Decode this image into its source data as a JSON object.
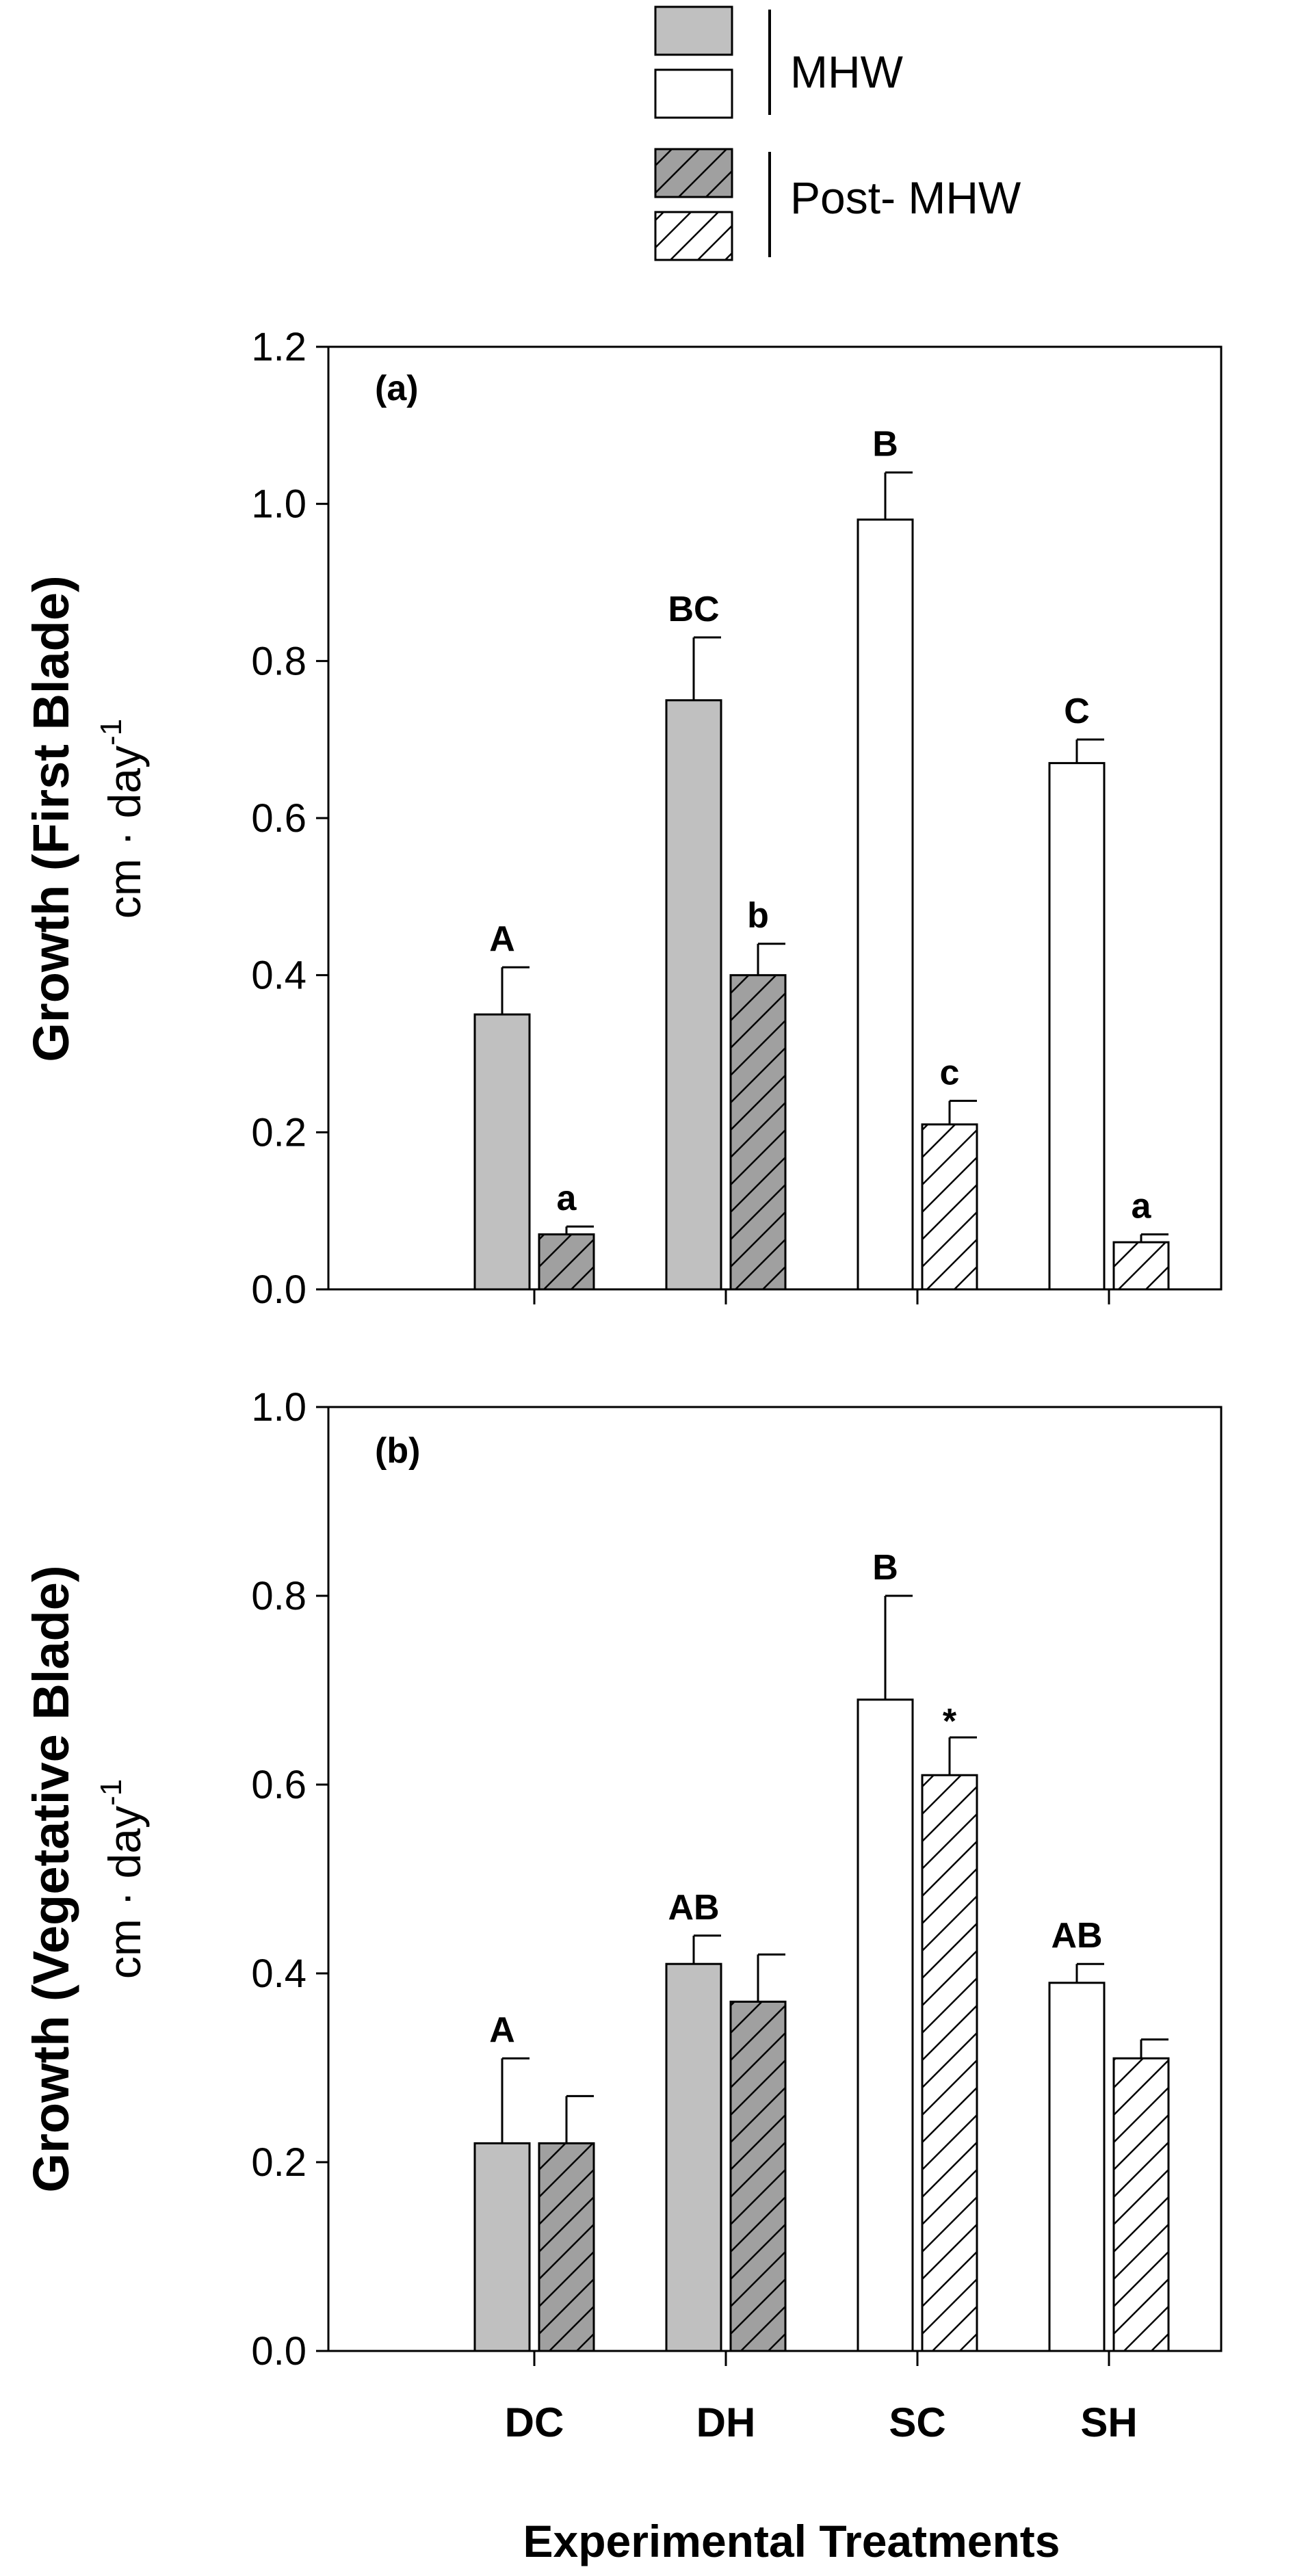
{
  "colors": {
    "mhw_fill": "#c0c0c0",
    "post_fill": "#a0a0a0",
    "sc_sh_fill": "#ffffff",
    "stroke": "#000000",
    "hatch": "#000000"
  },
  "legend": {
    "mhw_label": "MHW",
    "post_label": "Post- MHW"
  },
  "x_title": "Experimental Treatments",
  "chart_data": [
    {
      "type": "bar",
      "panel_label": "(a)",
      "ylabel_main": "Growth (First Blade)",
      "ylabel_unit": "cm · day",
      "ylabel_sup": "-1",
      "ylim": [
        0,
        1.2
      ],
      "yticks": [
        "0.0",
        "0.2",
        "0.4",
        "0.6",
        "0.8",
        "1.0",
        "1.2"
      ],
      "categories": [
        "DC",
        "DH",
        "SC",
        "SH"
      ],
      "series": [
        {
          "name": "MHW",
          "values": [
            0.35,
            0.75,
            0.98,
            0.67
          ],
          "errors": [
            0.06,
            0.08,
            0.06,
            0.03
          ],
          "letters": [
            "A",
            "BC",
            "B",
            "C"
          ]
        },
        {
          "name": "Post- MHW",
          "values": [
            0.07,
            0.4,
            0.21,
            0.06
          ],
          "errors": [
            0.01,
            0.04,
            0.03,
            0.01
          ],
          "letters": [
            "a",
            "b",
            "c",
            "a"
          ]
        }
      ]
    },
    {
      "type": "bar",
      "panel_label": "(b)",
      "ylabel_main": "Growth (Vegetative Blade)",
      "ylabel_unit": "cm · day",
      "ylabel_sup": "-1",
      "ylim": [
        0,
        1.0
      ],
      "yticks": [
        "0.0",
        "0.2",
        "0.4",
        "0.6",
        "0.8",
        "1.0"
      ],
      "categories": [
        "DC",
        "DH",
        "SC",
        "SH"
      ],
      "series": [
        {
          "name": "MHW",
          "values": [
            0.22,
            0.41,
            0.69,
            0.39
          ],
          "errors": [
            0.09,
            0.03,
            0.11,
            0.02
          ],
          "letters": [
            "A",
            "AB",
            "B",
            "AB"
          ]
        },
        {
          "name": "Post- MHW",
          "values": [
            0.22,
            0.37,
            0.61,
            0.31
          ],
          "errors": [
            0.05,
            0.05,
            0.04,
            0.02
          ],
          "letters": [
            "",
            "",
            "*",
            ""
          ]
        }
      ]
    }
  ]
}
